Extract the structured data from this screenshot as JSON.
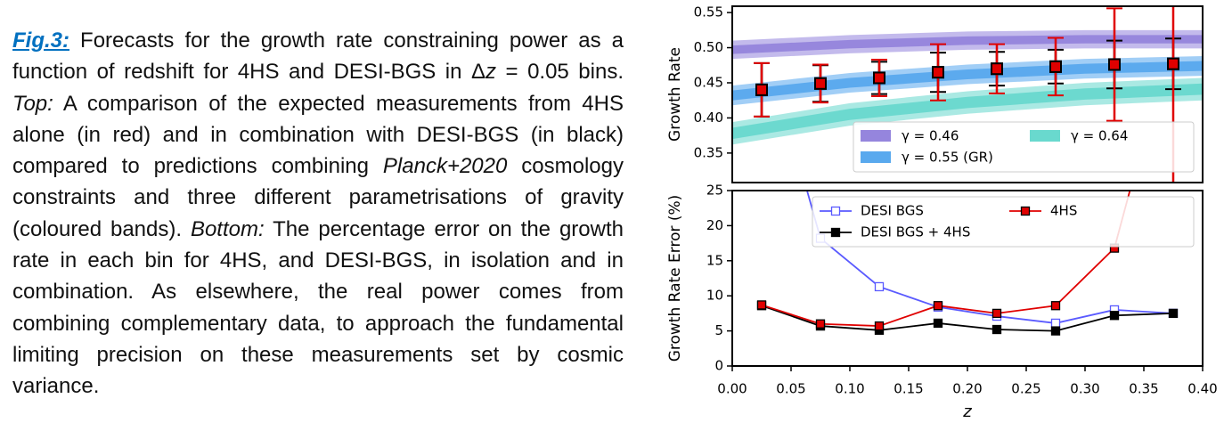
{
  "caption": {
    "label": "Fig.3:",
    "parts": [
      " Forecasts for the growth rate constraining power as a function of redshift for 4HS and DESI-BGS in Δ",
      "z",
      " = 0.05 bins. ",
      "Top:",
      " A comparison of the expected measurements from 4HS alone (in red) and in combination with DESI-BGS (in black) compared to predictions combining ",
      "Planck+2020",
      " cosmology constraints and three different parametrisations of gravity (coloured bands). ",
      "Bottom:",
      " The percentage error on the growth rate in each bin for 4HS, and DESI-BGS, in isolation and in combination. As elsewhere, the real power comes from combining complementary data, to approach the fundamental limiting precision on these measurements set by cosmic variance."
    ]
  },
  "chart_data": [
    {
      "type": "errorbar",
      "ylabel": "Growth Rate",
      "xlim": [
        0,
        0.4
      ],
      "ylim": [
        0.308,
        0.559
      ],
      "yticks": [
        0.35,
        {
          "value": 0.4,
          "label": "0.40"
        },
        0.45,
        {
          "value": 0.5,
          "label": "0.50"
        },
        0.55
      ],
      "legend": "lower right",
      "legend_columns": 2,
      "bands": [
        {
          "name": "γ = 0.46",
          "color": "#7a66d4",
          "x": [
            0,
            0.1,
            0.2,
            0.3,
            0.4
          ],
          "lower": [
            0.484,
            0.492,
            0.497,
            0.499,
            0.499
          ],
          "upper": [
            0.51,
            0.518,
            0.523,
            0.525,
            0.525
          ],
          "inner_lower": [
            0.491,
            0.499,
            0.504,
            0.506,
            0.506
          ],
          "inner_upper": [
            0.503,
            0.511,
            0.516,
            0.518,
            0.518
          ]
        },
        {
          "name": "γ = 0.55 (GR)",
          "color": "#2f93ea",
          "x": [
            0,
            0.1,
            0.2,
            0.3,
            0.4
          ],
          "lower": [
            0.418,
            0.436,
            0.448,
            0.456,
            0.46
          ],
          "upper": [
            0.446,
            0.464,
            0.476,
            0.484,
            0.488
          ],
          "inner_lower": [
            0.425,
            0.443,
            0.455,
            0.463,
            0.467
          ],
          "inner_upper": [
            0.439,
            0.457,
            0.469,
            0.477,
            0.481
          ]
        },
        {
          "name": "γ = 0.64",
          "color": "#43cfc2",
          "x": [
            0,
            0.1,
            0.2,
            0.3,
            0.4
          ],
          "lower": [
            0.362,
            0.389,
            0.406,
            0.418,
            0.425
          ],
          "upper": [
            0.394,
            0.421,
            0.438,
            0.45,
            0.457
          ],
          "inner_lower": [
            0.37,
            0.397,
            0.414,
            0.426,
            0.433
          ],
          "inner_upper": [
            0.386,
            0.413,
            0.43,
            0.442,
            0.449
          ]
        }
      ],
      "series": [
        {
          "color": "#000000",
          "x": [
            0.025,
            0.075,
            0.125,
            0.175,
            0.225,
            0.275,
            0.325,
            0.375
          ],
          "values": [
            0.44,
            0.449,
            0.457,
            0.465,
            0.47,
            0.473,
            0.476,
            0.477
          ],
          "errors": [
            0.038,
            0.026,
            0.023,
            0.028,
            0.024,
            0.024,
            0.034,
            0.036
          ]
        },
        {
          "color": "#e00000",
          "x": [
            0.025,
            0.075,
            0.125,
            0.175,
            0.225,
            0.275,
            0.325,
            0.375
          ],
          "values": [
            0.44,
            0.449,
            0.457,
            0.465,
            0.47,
            0.473,
            0.476,
            0.477
          ],
          "errors": [
            0.038,
            0.027,
            0.026,
            0.04,
            0.035,
            0.041,
            0.08,
            0.2
          ]
        }
      ]
    },
    {
      "type": "line",
      "ylabel": "Growth Rate Error (%)",
      "xlabel": "z",
      "xlim": [
        0,
        0.4
      ],
      "ylim": [
        0,
        25
      ],
      "xticks": [
        {
          "value": 0,
          "label": "0.00"
        },
        {
          "value": 0.05,
          "label": "0.05"
        },
        {
          "value": 0.1,
          "label": "0.10"
        },
        {
          "value": 0.15,
          "label": "0.15"
        },
        {
          "value": 0.2,
          "label": "0.20"
        },
        {
          "value": 0.25,
          "label": "0.25"
        },
        {
          "value": 0.3,
          "label": "0.30"
        },
        {
          "value": 0.35,
          "label": "0.35"
        },
        {
          "value": 0.4,
          "label": "0.40"
        }
      ],
      "yticks": [
        0,
        5,
        10,
        15,
        20,
        25
      ],
      "legend": "upper right",
      "legend_columns": 2,
      "series": [
        {
          "name": "DESI BGS",
          "color": "#5a5aff",
          "marker": "open-square",
          "x": [
            0.025,
            0.075,
            0.125,
            0.175,
            0.225,
            0.275,
            0.325,
            0.375
          ],
          "values": [
            48,
            18.2,
            11.3,
            8.4,
            7.1,
            6.1,
            8.0,
            7.5
          ]
        },
        {
          "name": "DESI BGS + 4HS",
          "color": "#000000",
          "marker": "square",
          "x": [
            0.025,
            0.075,
            0.125,
            0.175,
            0.225,
            0.275,
            0.325,
            0.375
          ],
          "values": [
            8.6,
            5.7,
            5.1,
            6.1,
            5.2,
            5.0,
            7.2,
            7.5
          ]
        },
        {
          "name": "4HS",
          "color": "#e00000",
          "marker": "square",
          "x": [
            0.025,
            0.075,
            0.125,
            0.175,
            0.225,
            0.275,
            0.325,
            0.375
          ],
          "values": [
            8.7,
            6.0,
            5.7,
            8.6,
            7.5,
            8.6,
            16.8,
            48
          ]
        }
      ]
    }
  ]
}
